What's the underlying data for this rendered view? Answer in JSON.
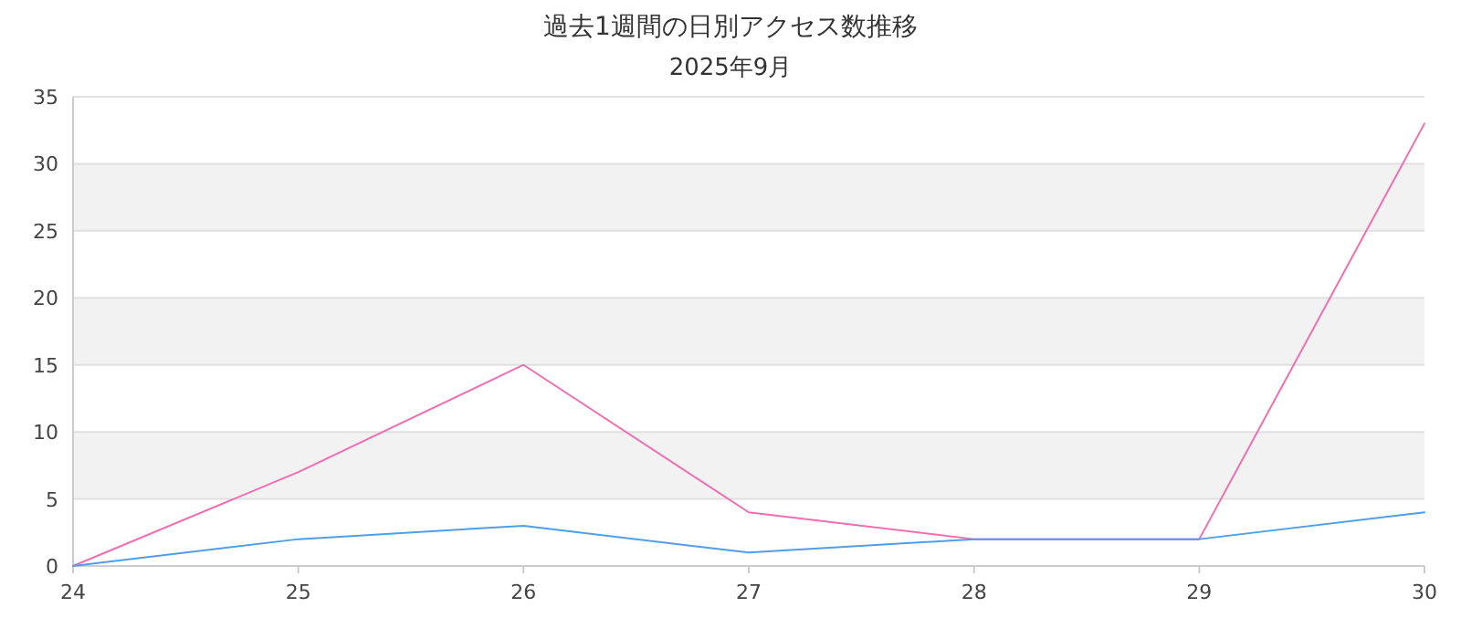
{
  "chart_data": {
    "type": "line",
    "title": "過去1週間の日別アクセス数推移",
    "subtitle": "2025年9月",
    "categories": [
      "24",
      "25",
      "26",
      "27",
      "28",
      "29",
      "30"
    ],
    "series": [
      {
        "color": "#f06fae",
        "values": [
          0,
          7,
          15,
          4,
          2,
          2,
          33
        ]
      },
      {
        "color": "#4f9ee8",
        "values": [
          0,
          2,
          3,
          1,
          2,
          2,
          4
        ]
      }
    ],
    "ylim": [
      0,
      35
    ],
    "yticks": [
      0,
      5,
      10,
      15,
      20,
      25,
      30,
      35
    ],
    "grid": "y",
    "marker": "none",
    "line_style": "solid"
  }
}
